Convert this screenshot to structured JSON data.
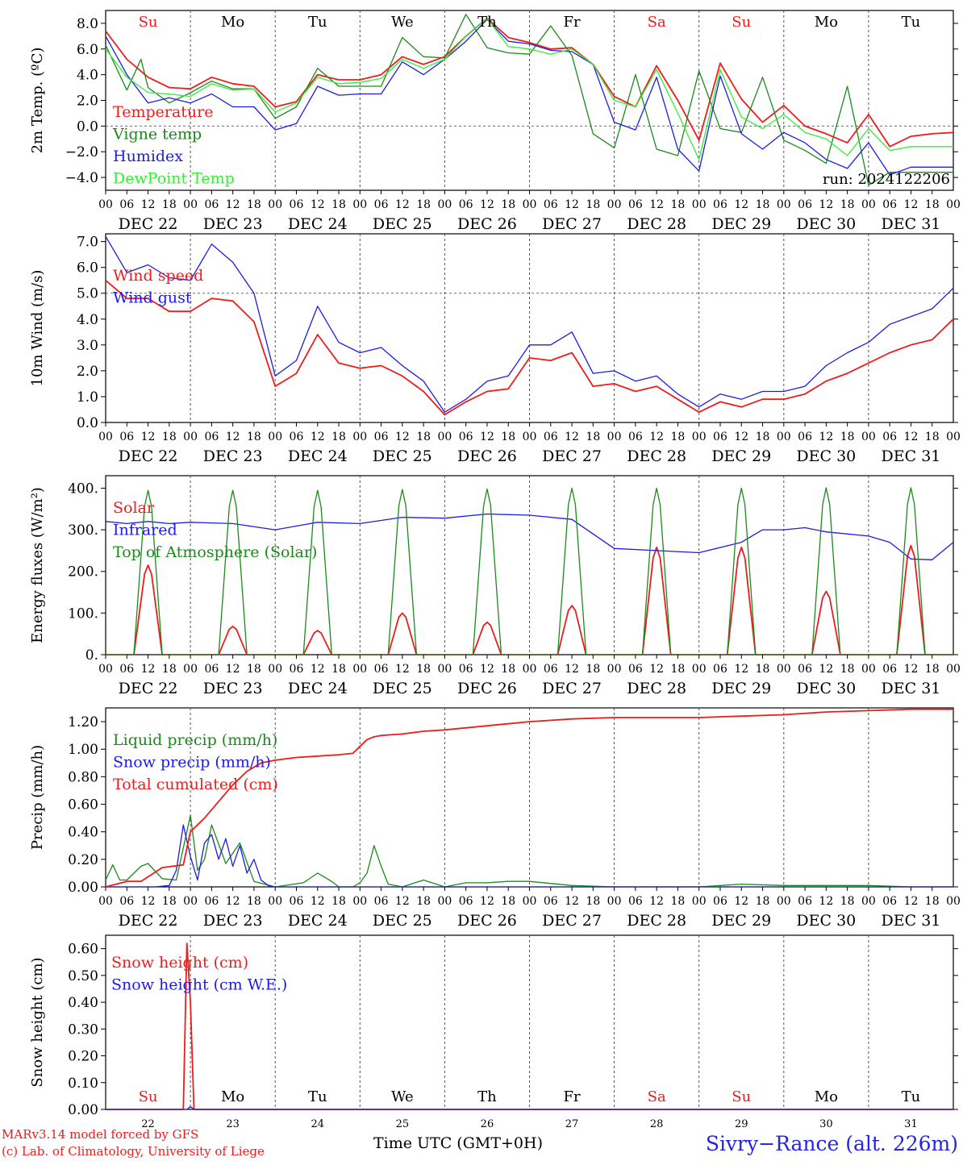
{
  "page": {
    "run_label": "run: 2024122206",
    "footer_left_1": "MARv3.14 model forced by GFS",
    "footer_left_2": "(c) Lab. of Climatology, University of Liege",
    "footer_center": "Time UTC (GMT+0H)",
    "footer_right": "Sivry−Rance (alt. 226m)",
    "colors": {
      "red": "#ee1c1c",
      "green": "#1a8a1a",
      "blue": "#1c1ce6",
      "lime": "#33ee33",
      "weekend": "#ee1c1c"
    }
  },
  "days": {
    "short": [
      "Su",
      "Mo",
      "Tu",
      "We",
      "Th",
      "Fr",
      "Sa",
      "Su",
      "Mo",
      "Tu"
    ],
    "dates": [
      "DEC 22",
      "DEC 23",
      "DEC 24",
      "DEC 25",
      "DEC 26",
      "DEC 27",
      "DEC 28",
      "DEC 29",
      "DEC 30",
      "DEC 31"
    ],
    "numbers": [
      "22",
      "23",
      "24",
      "25",
      "26",
      "27",
      "28",
      "29",
      "30",
      "31"
    ],
    "weekend": [
      true,
      false,
      false,
      false,
      false,
      false,
      true,
      true,
      false,
      false
    ],
    "hour_ticks": [
      "00",
      "06",
      "12",
      "18"
    ],
    "last_tick": "00"
  },
  "chart_data": [
    {
      "type": "line",
      "ylabel": "2m Temp. (ºC)",
      "ylim": [
        -5,
        9
      ],
      "yticks": [
        "8.0",
        "6.0",
        "4.0",
        "2.0",
        "0.0",
        "−2.0",
        "−4.0"
      ],
      "ytick_values": [
        8,
        6,
        4,
        2,
        0,
        -2,
        -4
      ],
      "hline": 0,
      "x_unit": "hours since DEC 22 00 UTC",
      "series": [
        {
          "name": "Temperature",
          "color": "red",
          "x": [
            0,
            6,
            12,
            18,
            24,
            30,
            36,
            42,
            48,
            54,
            60,
            66,
            72,
            78,
            84,
            90,
            96,
            102,
            108,
            114,
            120,
            126,
            132,
            138,
            144,
            150,
            156,
            162,
            168,
            174,
            180,
            186,
            192,
            198,
            204,
            210,
            216,
            222,
            228,
            234,
            240
          ],
          "y": [
            7.4,
            5.2,
            3.8,
            3.0,
            2.9,
            3.8,
            3.3,
            3.1,
            1.5,
            1.9,
            4.0,
            3.6,
            3.6,
            4.0,
            5.4,
            4.8,
            5.4,
            7.0,
            8.4,
            6.9,
            6.5,
            6.0,
            6.1,
            4.8,
            2.3,
            1.5,
            4.7,
            2.0,
            -1.1,
            4.9,
            2.1,
            0.3,
            1.6,
            0.0,
            -0.6,
            -1.3,
            0.9,
            -1.6,
            -0.8,
            -0.6,
            -0.5
          ]
        },
        {
          "name": "Vigne temp",
          "color": "green",
          "x": [
            0,
            6,
            10,
            12,
            18,
            24,
            30,
            36,
            42,
            48,
            54,
            60,
            66,
            72,
            78,
            84,
            90,
            96,
            102,
            108,
            114,
            120,
            126,
            132,
            138,
            144,
            150,
            156,
            162,
            168,
            174,
            180,
            186,
            192,
            198,
            204,
            210,
            216,
            222,
            228,
            234,
            240
          ],
          "y": [
            6.3,
            2.8,
            5.2,
            3.0,
            1.8,
            2.6,
            3.5,
            2.9,
            2.9,
            0.6,
            1.5,
            4.5,
            3.1,
            3.1,
            3.1,
            6.9,
            5.4,
            5.3,
            8.7,
            6.1,
            5.7,
            5.6,
            7.8,
            5.5,
            -0.6,
            -1.7,
            4.0,
            -1.8,
            -2.3,
            4.3,
            -0.2,
            -0.5,
            3.8,
            -1.1,
            -1.9,
            -2.9,
            3.1,
            -4.6,
            -3.6,
            -3.6,
            -3.6,
            -3.6
          ]
        },
        {
          "name": "Humidex",
          "color": "blue",
          "x": [
            0,
            6,
            12,
            18,
            24,
            30,
            36,
            42,
            48,
            54,
            60,
            66,
            72,
            78,
            84,
            90,
            96,
            102,
            108,
            114,
            120,
            126,
            132,
            138,
            144,
            150,
            156,
            162,
            168,
            174,
            180,
            186,
            192,
            198,
            204,
            210,
            216,
            222,
            228,
            234,
            240
          ],
          "y": [
            7.0,
            4.0,
            1.8,
            2.2,
            1.8,
            2.5,
            1.5,
            1.5,
            -0.3,
            0.2,
            3.1,
            2.4,
            2.5,
            2.5,
            5.0,
            4.0,
            5.2,
            6.6,
            8.3,
            6.6,
            6.4,
            5.9,
            5.8,
            4.8,
            0.3,
            -0.3,
            3.8,
            -1.8,
            -3.5,
            3.9,
            -0.6,
            -1.8,
            -0.5,
            -1.3,
            -2.6,
            -3.3,
            -1.3,
            -3.8,
            -3.2,
            -3.2,
            -3.2
          ]
        },
        {
          "name": "DewPoint Temp",
          "color": "lime",
          "x": [
            0,
            6,
            12,
            18,
            24,
            30,
            36,
            42,
            48,
            54,
            60,
            66,
            72,
            78,
            84,
            90,
            96,
            102,
            108,
            114,
            120,
            126,
            132,
            138,
            144,
            150,
            156,
            162,
            168,
            174,
            180,
            186,
            192,
            198,
            204,
            210,
            216,
            222,
            228,
            234,
            240
          ],
          "y": [
            6.0,
            3.8,
            2.6,
            2.5,
            2.3,
            3.3,
            2.8,
            2.9,
            1.1,
            1.8,
            3.8,
            3.3,
            3.4,
            3.7,
            5.2,
            4.5,
            5.2,
            7.0,
            8.4,
            6.2,
            6.0,
            5.6,
            6.0,
            4.8,
            2.0,
            1.5,
            4.4,
            1.0,
            -2.6,
            4.4,
            0.7,
            -0.2,
            0.9,
            -0.5,
            -1.0,
            -2.3,
            -0.2,
            -1.9,
            -1.6,
            -1.6,
            -1.6
          ]
        }
      ]
    },
    {
      "type": "line",
      "ylabel": "10m Wind (m/s)",
      "ylim": [
        0,
        7.3
      ],
      "yticks": [
        "7.0",
        "6.0",
        "5.0",
        "4.0",
        "3.0",
        "2.0",
        "1.0",
        "0.0"
      ],
      "ytick_values": [
        7,
        6,
        5,
        4,
        3,
        2,
        1,
        0
      ],
      "hline": 5,
      "series": [
        {
          "name": "Wind speed",
          "color": "red",
          "x": [
            0,
            6,
            12,
            18,
            24,
            30,
            36,
            42,
            48,
            54,
            60,
            66,
            72,
            78,
            84,
            90,
            96,
            102,
            108,
            114,
            120,
            126,
            132,
            138,
            144,
            150,
            156,
            162,
            168,
            174,
            180,
            186,
            192,
            198,
            204,
            210,
            216,
            222,
            228,
            234,
            240
          ],
          "y": [
            5.5,
            4.8,
            4.8,
            4.3,
            4.3,
            4.8,
            4.7,
            3.9,
            1.4,
            1.9,
            3.4,
            2.3,
            2.1,
            2.2,
            1.8,
            1.2,
            0.3,
            0.8,
            1.2,
            1.3,
            2.5,
            2.4,
            2.7,
            1.4,
            1.5,
            1.2,
            1.4,
            0.9,
            0.4,
            0.8,
            0.6,
            0.9,
            0.9,
            1.1,
            1.6,
            1.9,
            2.3,
            2.7,
            3.0,
            3.2,
            4.0
          ]
        },
        {
          "name": "Wind gust",
          "color": "blue",
          "x": [
            0,
            6,
            12,
            18,
            24,
            30,
            36,
            42,
            48,
            54,
            60,
            66,
            72,
            78,
            84,
            90,
            96,
            102,
            108,
            114,
            120,
            126,
            132,
            138,
            144,
            150,
            156,
            162,
            168,
            174,
            180,
            186,
            192,
            198,
            204,
            210,
            216,
            222,
            228,
            234,
            240
          ],
          "y": [
            7.2,
            5.8,
            6.1,
            5.6,
            5.5,
            6.9,
            6.2,
            5.0,
            1.8,
            2.4,
            4.5,
            3.1,
            2.7,
            2.9,
            2.2,
            1.6,
            0.4,
            0.9,
            1.6,
            1.8,
            3.0,
            3.0,
            3.5,
            1.9,
            2.0,
            1.6,
            1.8,
            1.1,
            0.6,
            1.1,
            0.9,
            1.2,
            1.2,
            1.4,
            2.2,
            2.7,
            3.1,
            3.8,
            4.1,
            4.4,
            5.2
          ]
        }
      ]
    },
    {
      "type": "line",
      "ylabel": "Energy fluxes (W/m²)",
      "ylim": [
        0,
        430
      ],
      "yticks": [
        "400.",
        "300.",
        "200.",
        "100.",
        "0."
      ],
      "ytick_values": [
        400,
        300,
        200,
        100,
        0
      ],
      "series": [
        {
          "name": "Solar",
          "color": "red",
          "kind": "daily_peak",
          "peaks": [
            215,
            68,
            58,
            100,
            78,
            118,
            258,
            258,
            152,
            262
          ]
        },
        {
          "name": "Infrared",
          "color": "blue",
          "x": [
            0,
            6,
            12,
            18,
            24,
            36,
            48,
            60,
            72,
            84,
            96,
            108,
            120,
            132,
            144,
            156,
            168,
            180,
            186,
            192,
            198,
            204,
            216,
            222,
            228,
            234,
            240
          ],
          "y": [
            320,
            315,
            320,
            315,
            318,
            315,
            300,
            318,
            315,
            330,
            328,
            338,
            335,
            325,
            255,
            250,
            245,
            270,
            300,
            300,
            305,
            295,
            285,
            270,
            230,
            228,
            270
          ]
        },
        {
          "name": "Top of Atmosphere (Solar)",
          "color": "green",
          "kind": "daily_peak",
          "peaks": [
            395,
            395,
            395,
            397,
            398,
            400,
            400,
            400,
            401,
            401
          ]
        }
      ]
    },
    {
      "type": "line",
      "ylabel": "Precip (mm/h)",
      "ylim": [
        0,
        1.3
      ],
      "yticks": [
        "1.20",
        "1.00",
        "0.80",
        "0.60",
        "0.40",
        "0.20",
        "0.00"
      ],
      "ytick_values": [
        1.2,
        1.0,
        0.8,
        0.6,
        0.4,
        0.2,
        0.0
      ],
      "series": [
        {
          "name": "Liquid precip (mm/h)",
          "color": "green",
          "x": [
            0,
            2,
            4,
            6,
            10,
            12,
            16,
            20,
            24,
            26,
            28,
            30,
            34,
            38,
            42,
            48,
            56,
            60,
            64,
            66,
            70,
            72,
            74,
            76,
            78,
            80,
            84,
            90,
            96,
            102,
            108,
            114,
            120,
            132,
            144,
            168,
            180,
            192,
            204,
            216,
            228,
            240
          ],
          "y": [
            0.05,
            0.16,
            0.05,
            0.05,
            0.15,
            0.17,
            0.06,
            0.05,
            0.52,
            0.12,
            0.2,
            0.45,
            0.17,
            0.32,
            0.04,
            0.0,
            0.03,
            0.1,
            0.04,
            0.0,
            0.0,
            0.03,
            0.1,
            0.3,
            0.15,
            0.02,
            0.0,
            0.05,
            0.0,
            0.03,
            0.03,
            0.04,
            0.04,
            0.01,
            0.0,
            0.0,
            0.02,
            0.01,
            0.01,
            0.01,
            0.0,
            0.0
          ]
        },
        {
          "name": "Snow precip (mm/h)",
          "color": "blue",
          "x": [
            0,
            14,
            18,
            20,
            22,
            24,
            26,
            28,
            30,
            32,
            34,
            36,
            38,
            40,
            42,
            44,
            46,
            48,
            240
          ],
          "y": [
            0.0,
            0.0,
            0.01,
            0.12,
            0.45,
            0.22,
            0.05,
            0.32,
            0.38,
            0.2,
            0.35,
            0.15,
            0.3,
            0.1,
            0.2,
            0.05,
            0.01,
            0.0,
            0.0
          ]
        },
        {
          "name": "Total cumulated (cm)",
          "color": "red",
          "x": [
            0,
            6,
            10,
            16,
            22,
            24,
            28,
            32,
            36,
            40,
            44,
            48,
            54,
            60,
            66,
            70,
            72,
            74,
            76,
            78,
            84,
            90,
            96,
            108,
            120,
            132,
            144,
            156,
            168,
            180,
            192,
            204,
            216,
            228,
            240
          ],
          "y": [
            0.0,
            0.04,
            0.04,
            0.14,
            0.16,
            0.4,
            0.5,
            0.62,
            0.74,
            0.84,
            0.9,
            0.92,
            0.94,
            0.95,
            0.96,
            0.97,
            1.02,
            1.07,
            1.09,
            1.1,
            1.11,
            1.13,
            1.14,
            1.17,
            1.2,
            1.22,
            1.23,
            1.23,
            1.23,
            1.24,
            1.25,
            1.27,
            1.28,
            1.29,
            1.29
          ]
        }
      ]
    },
    {
      "type": "line",
      "ylabel": "Snow height (cm)",
      "ylim": [
        0,
        0.65
      ],
      "yticks": [
        "0.60",
        "0.50",
        "0.40",
        "0.30",
        "0.20",
        "0.10",
        "0.00"
      ],
      "ytick_values": [
        0.6,
        0.5,
        0.4,
        0.3,
        0.2,
        0.1,
        0.0
      ],
      "series": [
        {
          "name": "Snow height (cm)",
          "color": "red",
          "x": [
            0,
            22,
            23,
            24,
            25,
            240
          ],
          "y": [
            0,
            0,
            0.62,
            0.4,
            0,
            0
          ]
        },
        {
          "name": "Snow height (cm W.E.)",
          "color": "blue",
          "x": [
            0,
            23,
            24,
            25,
            240
          ],
          "y": [
            0,
            0,
            0.01,
            0,
            0
          ]
        }
      ]
    }
  ]
}
